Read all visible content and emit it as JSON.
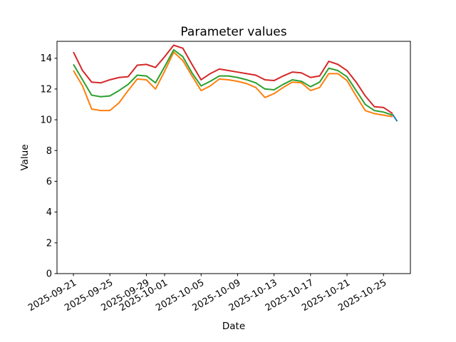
{
  "chart_data": {
    "type": "line",
    "title": "Parameter values",
    "xlabel": "Date",
    "ylabel": "Value",
    "grid": false,
    "legend": "none",
    "ylim": [
      0,
      15.1
    ],
    "xlim_days": [
      -1.8,
      36.95
    ],
    "y_ticks": [
      0,
      2,
      4,
      6,
      8,
      10,
      12,
      14
    ],
    "x_ticks": [
      {
        "label": "2025-09-21",
        "day": 0
      },
      {
        "label": "2025-09-25",
        "day": 4
      },
      {
        "label": "2025-09-29",
        "day": 8
      },
      {
        "label": "2025-10-01",
        "day": 10
      },
      {
        "label": "2025-10-05",
        "day": 14
      },
      {
        "label": "2025-10-09",
        "day": 18
      },
      {
        "label": "2025-10-13",
        "day": 22
      },
      {
        "label": "2025-10-17",
        "day": 26
      },
      {
        "label": "2025-10-21",
        "day": 30
      },
      {
        "label": "2025-10-25",
        "day": 34
      }
    ],
    "categories": [
      "2025-09-21",
      "2025-09-22",
      "2025-09-23",
      "2025-09-24",
      "2025-09-25",
      "2025-09-26",
      "2025-09-27",
      "2025-09-28",
      "2025-09-29",
      "2025-09-30",
      "2025-10-01",
      "2025-10-02",
      "2025-10-03",
      "2025-10-04",
      "2025-10-05",
      "2025-10-06",
      "2025-10-07",
      "2025-10-08",
      "2025-10-09",
      "2025-10-10",
      "2025-10-11",
      "2025-10-12",
      "2025-10-13",
      "2025-10-14",
      "2025-10-15",
      "2025-10-16",
      "2025-10-17",
      "2025-10-18",
      "2025-10-19",
      "2025-10-20",
      "2025-10-21",
      "2025-10-22",
      "2025-10-23",
      "2025-10-24",
      "2025-10-25",
      "2025-10-26"
    ],
    "series": [
      {
        "name": "series-blue-tail",
        "color": "#1f77b4",
        "x_days": [
          35,
          35.5
        ],
        "values": [
          10.35,
          9.9
        ]
      },
      {
        "name": "series-orange",
        "color": "#ff7f0e",
        "values": [
          13.2,
          12.2,
          10.7,
          10.6,
          10.6,
          11.1,
          11.9,
          12.65,
          12.6,
          12.0,
          13.15,
          14.4,
          13.85,
          12.85,
          11.9,
          12.2,
          12.65,
          12.6,
          12.5,
          12.35,
          12.1,
          11.45,
          11.7,
          12.1,
          12.45,
          12.4,
          11.9,
          12.1,
          13.0,
          13.0,
          12.55,
          11.55,
          10.6,
          10.4,
          10.3,
          10.2
        ]
      },
      {
        "name": "series-green",
        "color": "#2ca02c",
        "values": [
          13.6,
          12.6,
          11.6,
          11.5,
          11.55,
          11.9,
          12.3,
          12.9,
          12.85,
          12.4,
          13.45,
          14.55,
          14.1,
          13.05,
          12.2,
          12.5,
          12.85,
          12.85,
          12.75,
          12.6,
          12.4,
          12.0,
          11.95,
          12.3,
          12.6,
          12.5,
          12.15,
          12.45,
          13.35,
          13.2,
          12.8,
          11.9,
          11.0,
          10.6,
          10.5,
          10.3
        ]
      },
      {
        "name": "series-red",
        "color": "#d62728",
        "values": [
          14.4,
          13.2,
          12.45,
          12.4,
          12.6,
          12.75,
          12.8,
          13.55,
          13.6,
          13.4,
          14.1,
          14.85,
          14.65,
          13.6,
          12.6,
          13.0,
          13.3,
          13.2,
          13.1,
          13.0,
          12.9,
          12.6,
          12.55,
          12.85,
          13.1,
          13.05,
          12.75,
          12.85,
          13.8,
          13.6,
          13.2,
          12.45,
          11.55,
          10.85,
          10.8,
          10.4
        ]
      }
    ]
  }
}
